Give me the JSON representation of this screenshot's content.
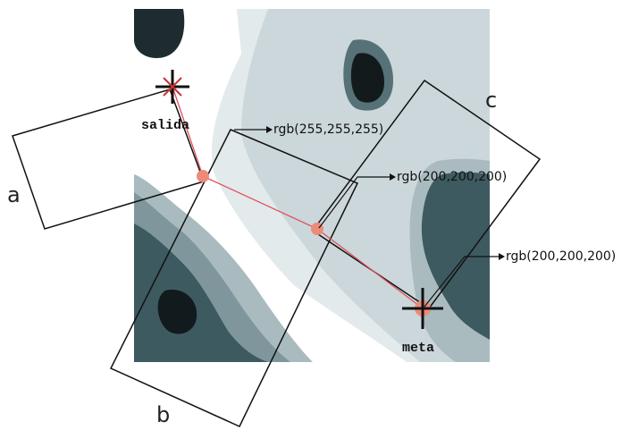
{
  "markers": {
    "start": "salida",
    "goal": "meta"
  },
  "regions": [
    "a",
    "b",
    "c"
  ],
  "annotations": [
    "rgb(255,255,255)",
    "rgb(200,200,200)",
    "rgb(200,200,200)"
  ]
}
